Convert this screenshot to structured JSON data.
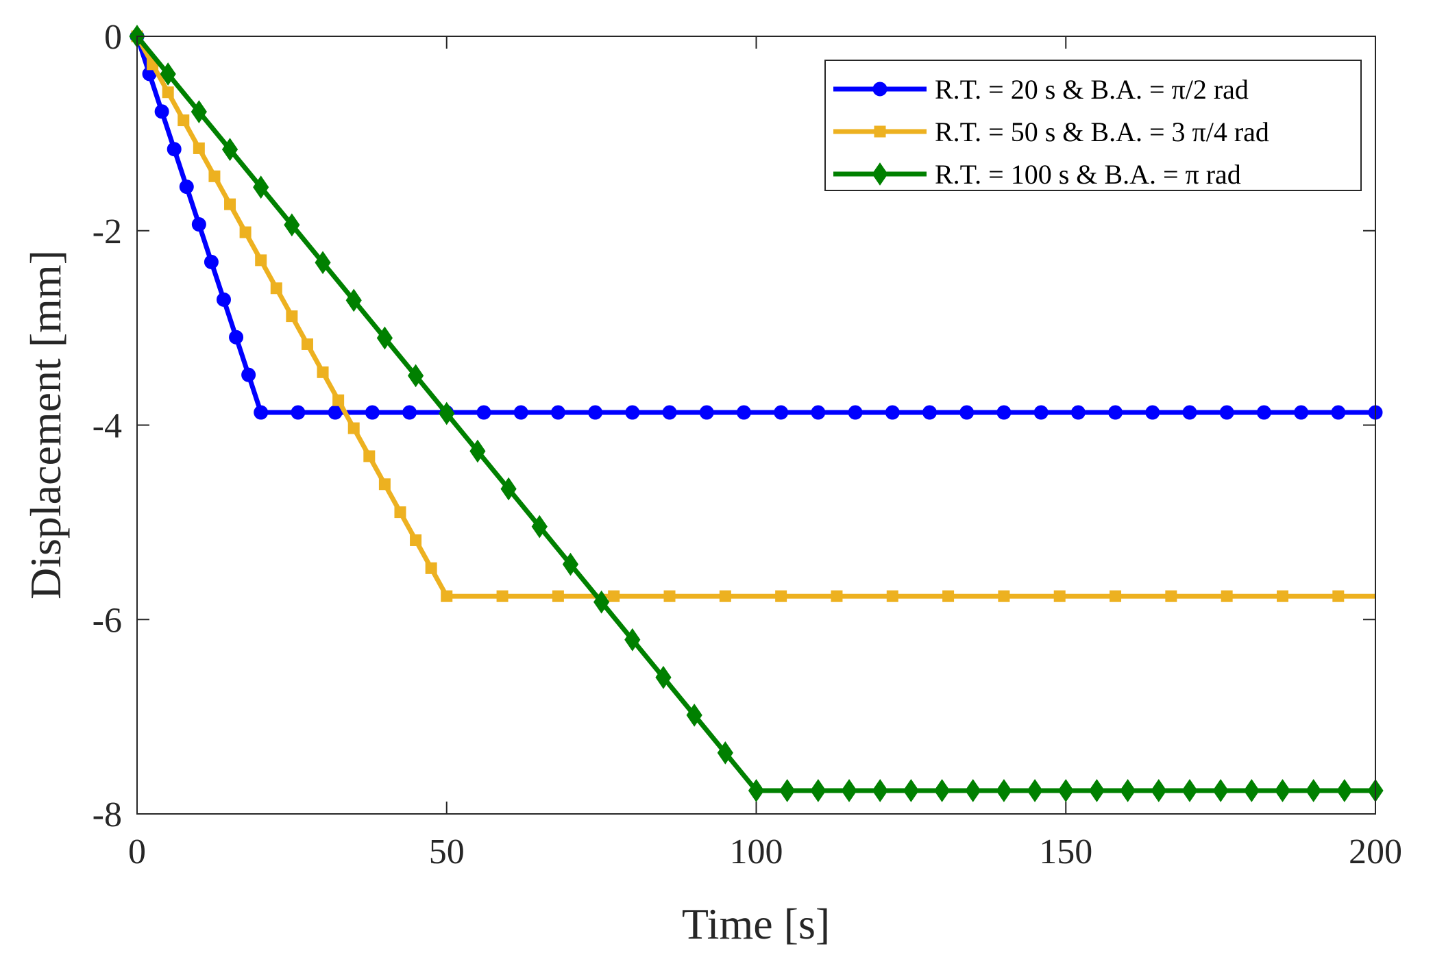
{
  "chart_data": {
    "type": "line",
    "title": "",
    "xlabel": "Time [s]",
    "ylabel": "Displacement [mm]",
    "xlim": [
      0,
      200
    ],
    "ylim": [
      -8,
      0
    ],
    "xticks": [
      0,
      50,
      100,
      150,
      200
    ],
    "yticks": [
      0,
      -2,
      -4,
      -6,
      -8
    ],
    "xtick_labels": [
      "0",
      "50",
      "100",
      "150",
      "200"
    ],
    "ytick_labels": [
      "0",
      "-2",
      "-4",
      "-6",
      "-8"
    ],
    "grid": false,
    "legend_position": "top-right",
    "series": [
      {
        "name": "R.T. = 20 s & B.A. = π/2 rad",
        "color": "#0000ff",
        "marker": "circle",
        "ramp_time": 20,
        "final_value": -3.87,
        "x": [
          0,
          2,
          4,
          6,
          8,
          10,
          12,
          14,
          16,
          18,
          20,
          26,
          32,
          38,
          44,
          50,
          56,
          62,
          68,
          74,
          80,
          86,
          92,
          98,
          104,
          110,
          116,
          122,
          128,
          134,
          140,
          146,
          152,
          158,
          164,
          170,
          176,
          182,
          188,
          194,
          200
        ],
        "values": [
          0,
          -0.387,
          -0.774,
          -1.161,
          -1.548,
          -1.935,
          -2.322,
          -2.709,
          -3.096,
          -3.483,
          -3.87,
          -3.87,
          -3.87,
          -3.87,
          -3.87,
          -3.87,
          -3.87,
          -3.87,
          -3.87,
          -3.87,
          -3.87,
          -3.87,
          -3.87,
          -3.87,
          -3.87,
          -3.87,
          -3.87,
          -3.87,
          -3.87,
          -3.87,
          -3.87,
          -3.87,
          -3.87,
          -3.87,
          -3.87,
          -3.87,
          -3.87,
          -3.87,
          -3.87,
          -3.87,
          -3.87
        ]
      },
      {
        "name": "R.T. = 50 s & B.A. = 3 π/4 rad",
        "color": "#edb120",
        "marker": "square",
        "ramp_time": 50,
        "final_value": -5.76,
        "x": [
          0,
          2.5,
          5,
          7.5,
          10,
          12.5,
          15,
          17.5,
          20,
          22.5,
          25,
          27.5,
          30,
          32.5,
          35,
          37.5,
          40,
          42.5,
          45,
          47.5,
          50,
          59,
          68,
          77,
          86,
          95,
          104,
          113,
          122,
          131,
          140,
          149,
          158,
          167,
          176,
          185,
          194
        ],
        "values": [
          0,
          -0.288,
          -0.576,
          -0.864,
          -1.152,
          -1.44,
          -1.728,
          -2.016,
          -2.304,
          -2.592,
          -2.88,
          -3.168,
          -3.456,
          -3.744,
          -4.032,
          -4.32,
          -4.608,
          -4.896,
          -5.184,
          -5.472,
          -5.76,
          -5.76,
          -5.76,
          -5.76,
          -5.76,
          -5.76,
          -5.76,
          -5.76,
          -5.76,
          -5.76,
          -5.76,
          -5.76,
          -5.76,
          -5.76,
          -5.76,
          -5.76,
          -5.76
        ],
        "line_end_x": 200
      },
      {
        "name": "R.T. = 100 s & B.A. = π rad",
        "color": "#008000",
        "marker": "diamond",
        "ramp_time": 100,
        "final_value": -7.76,
        "x": [
          0,
          5,
          10,
          15,
          20,
          25,
          30,
          35,
          40,
          45,
          50,
          55,
          60,
          65,
          70,
          75,
          80,
          85,
          90,
          95,
          100,
          105,
          110,
          115,
          120,
          125,
          130,
          135,
          140,
          145,
          150,
          155,
          160,
          165,
          170,
          175,
          180,
          185,
          190,
          195,
          200
        ],
        "values": [
          0,
          -0.388,
          -0.776,
          -1.164,
          -1.552,
          -1.94,
          -2.328,
          -2.716,
          -3.104,
          -3.492,
          -3.88,
          -4.268,
          -4.656,
          -5.044,
          -5.432,
          -5.82,
          -6.208,
          -6.596,
          -6.984,
          -7.372,
          -7.76,
          -7.76,
          -7.76,
          -7.76,
          -7.76,
          -7.76,
          -7.76,
          -7.76,
          -7.76,
          -7.76,
          -7.76,
          -7.76,
          -7.76,
          -7.76,
          -7.76,
          -7.76,
          -7.76,
          -7.76,
          -7.76,
          -7.76,
          -7.76
        ]
      }
    ]
  }
}
